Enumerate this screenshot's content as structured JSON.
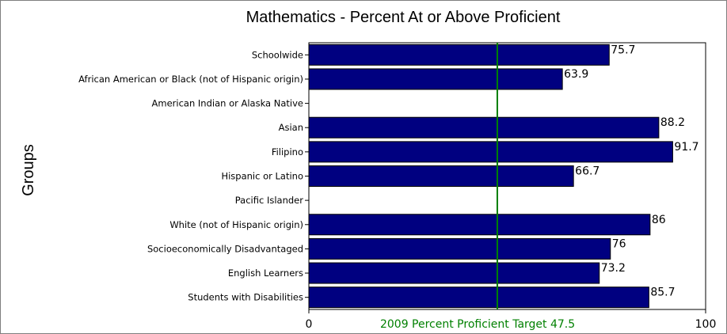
{
  "chart_data": {
    "type": "bar",
    "orientation": "horizontal",
    "title": "Mathematics - Percent At or Above Proficient",
    "ylabel": "Groups",
    "xlim": [
      0,
      100
    ],
    "x_ticks": [
      "0",
      "100"
    ],
    "categories": [
      "Schoolwide",
      "African American or Black (not of Hispanic origin)",
      "American Indian or Alaska Native",
      "Asian",
      "Filipino",
      "Hispanic or Latino",
      "Pacific Islander",
      "White (not of Hispanic origin)",
      "Socioeconomically Disadvantaged",
      "English Learners",
      "Students with Disabilities"
    ],
    "values": [
      75.7,
      63.9,
      null,
      88.2,
      91.7,
      66.7,
      null,
      86,
      76,
      73.2,
      85.7
    ],
    "value_labels": [
      "75.7",
      "63.9",
      "",
      "88.2",
      "91.7",
      "66.7",
      "",
      "86",
      "76",
      "73.2",
      "85.7"
    ],
    "target": {
      "value": 47.5,
      "label": "2009 Percent Proficient Target 47.5",
      "color": "#008000"
    },
    "bar_color": "#000080",
    "grid": false,
    "legend": "none"
  }
}
